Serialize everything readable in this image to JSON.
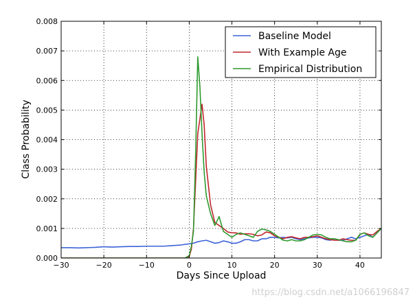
{
  "chart_data": {
    "type": "line",
    "xlabel": "Days Since Upload",
    "ylabel": "Class Probability",
    "xlim": [
      -30,
      45
    ],
    "ylim": [
      0,
      0.008
    ],
    "x_ticks": [
      -30,
      -20,
      -10,
      0,
      10,
      20,
      30,
      40
    ],
    "x_tick_labels": [
      "−30",
      "−20",
      "−10",
      "0",
      "10",
      "20",
      "30",
      "40"
    ],
    "y_ticks": [
      0,
      0.001,
      0.002,
      0.003,
      0.004,
      0.005,
      0.006,
      0.007,
      0.008
    ],
    "y_tick_labels": [
      "0.000",
      "0.001",
      "0.002",
      "0.003",
      "0.004",
      "0.005",
      "0.006",
      "0.007",
      "0.008"
    ],
    "grid": true,
    "legend_position": "top-right",
    "series": [
      {
        "name": "Baseline Model",
        "color": "#3b62d6",
        "x": [
          -30,
          -28,
          -26,
          -24,
          -22,
          -20,
          -18,
          -16,
          -14,
          -12,
          -10,
          -8,
          -6,
          -4,
          -2,
          0,
          1,
          2,
          3,
          4,
          5,
          6,
          7,
          8,
          9,
          10,
          11,
          12,
          13,
          14,
          15,
          16,
          17,
          18,
          19,
          20,
          21,
          22,
          23,
          24,
          25,
          26,
          27,
          28,
          29,
          30,
          31,
          32,
          33,
          34,
          35,
          36,
          37,
          38,
          39,
          40,
          41,
          42,
          43,
          44,
          45
        ],
        "y": [
          0.00035,
          0.00035,
          0.00034,
          0.00035,
          0.00036,
          0.00038,
          0.00037,
          0.00038,
          0.00039,
          0.00039,
          0.0004,
          0.0004,
          0.0004,
          0.00042,
          0.00044,
          0.00048,
          0.0005,
          0.00055,
          0.00058,
          0.0006,
          0.00055,
          0.0005,
          0.00052,
          0.00058,
          0.00055,
          0.0005,
          0.0005,
          0.00055,
          0.00062,
          0.00062,
          0.00058,
          0.00058,
          0.00065,
          0.00065,
          0.0007,
          0.0007,
          0.00068,
          0.0007,
          0.00068,
          0.0007,
          0.00065,
          0.00062,
          0.00065,
          0.00068,
          0.0007,
          0.0007,
          0.00068,
          0.00062,
          0.0006,
          0.00065,
          0.0006,
          0.0006,
          0.00065,
          0.0007,
          0.00065,
          0.0007,
          0.00075,
          0.0008,
          0.0007,
          0.00085,
          0.001
        ]
      },
      {
        "name": "With Example Age",
        "color": "#c0262c",
        "x": [
          -30,
          -10,
          -2,
          -1,
          0,
          0.5,
          1,
          1.5,
          2,
          2.5,
          3,
          3.5,
          4,
          5,
          6,
          7,
          8,
          9,
          10,
          11,
          12,
          13,
          14,
          15,
          16,
          17,
          18,
          19,
          20,
          21,
          22,
          23,
          24,
          25,
          26,
          27,
          28,
          29,
          30,
          31,
          32,
          33,
          34,
          35,
          36,
          37,
          38,
          39,
          40,
          41,
          42,
          43,
          44,
          45
        ],
        "y": [
          0,
          0,
          0,
          0,
          5e-05,
          0.0003,
          0.001,
          0.0026,
          0.0042,
          0.0047,
          0.0052,
          0.0045,
          0.0031,
          0.0018,
          0.0012,
          0.0011,
          0.001,
          0.00088,
          0.00085,
          0.00085,
          0.0008,
          0.00082,
          0.00082,
          0.0008,
          0.00075,
          0.00078,
          0.00088,
          0.00085,
          0.00075,
          0.0007,
          0.00065,
          0.0007,
          0.00072,
          0.00068,
          0.00065,
          0.0007,
          0.0007,
          0.00072,
          0.00075,
          0.0007,
          0.00065,
          0.00062,
          0.0006,
          0.0006,
          0.00065,
          0.00062,
          0.0006,
          0.0006,
          0.0008,
          0.00085,
          0.0008,
          0.00078,
          0.0009,
          0.001
        ]
      },
      {
        "name": "Empirical Distribution",
        "color": "#2e9a2e",
        "x": [
          -30,
          -10,
          -2,
          -1,
          0,
          0.5,
          1,
          1.5,
          2,
          2.5,
          3,
          3.5,
          4,
          5,
          6,
          7,
          8,
          9,
          10,
          11,
          12,
          13,
          14,
          15,
          16,
          17,
          18,
          19,
          20,
          21,
          22,
          23,
          24,
          25,
          26,
          27,
          28,
          29,
          30,
          31,
          32,
          33,
          34,
          35,
          36,
          37,
          38,
          39,
          40,
          41,
          42,
          43,
          44,
          45
        ],
        "y": [
          0,
          0,
          0,
          0,
          8e-05,
          0.0004,
          0.0009,
          0.0035,
          0.0068,
          0.0058,
          0.0042,
          0.0029,
          0.0021,
          0.0015,
          0.0011,
          0.0014,
          0.0009,
          0.0008,
          0.0007,
          0.0008,
          0.00085,
          0.0008,
          0.00075,
          0.0007,
          0.0009,
          0.00098,
          0.00095,
          0.0009,
          0.0008,
          0.0007,
          0.0006,
          0.00058,
          0.00062,
          0.00058,
          0.00058,
          0.00062,
          0.0007,
          0.00078,
          0.0008,
          0.00078,
          0.0007,
          0.00065,
          0.00065,
          0.00062,
          0.00058,
          0.00055,
          0.00055,
          0.0006,
          0.0008,
          0.00085,
          0.00075,
          0.0007,
          0.00085,
          0.001
        ]
      }
    ]
  },
  "watermark": "https://blog.csdn.net/a1066196847"
}
